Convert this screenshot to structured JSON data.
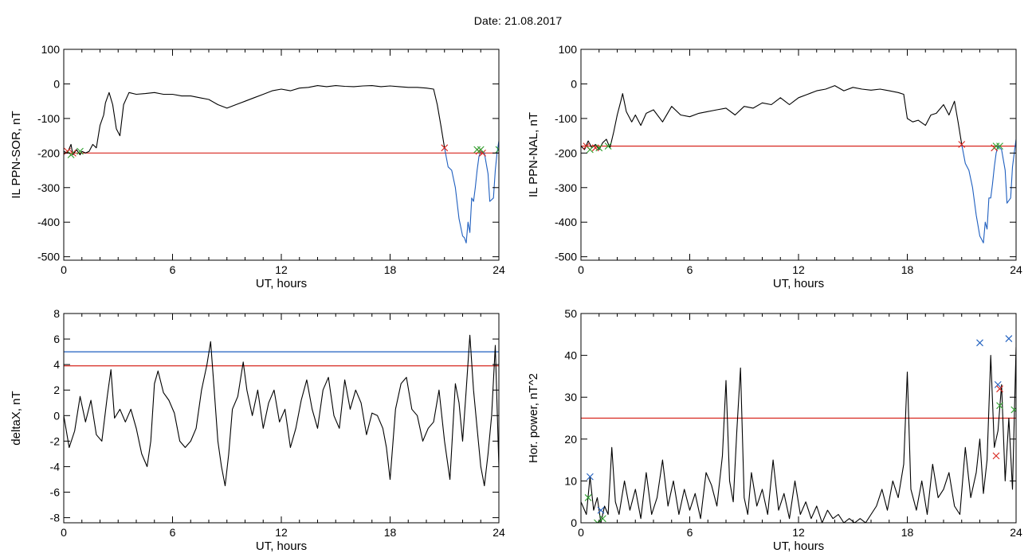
{
  "title": "Date:  21.08.2017",
  "chart_data": [
    {
      "id": "panel-sor",
      "type": "line",
      "xlabel": "UT, hours",
      "ylabel": "IL PPN-SOR, nT",
      "xlim": [
        0,
        24
      ],
      "ylim": [
        -510,
        100
      ],
      "xticks": [
        0,
        6,
        12,
        18,
        24
      ],
      "yticks": [
        100,
        0,
        -100,
        -200,
        -300,
        -400,
        -500
      ],
      "grid": false,
      "series": [
        {
          "color": "#000000",
          "x": [
            0,
            0.2,
            0.4,
            0.5,
            0.7,
            0.9,
            1.0,
            1.2,
            1.4,
            1.6,
            1.8,
            2.0,
            2.2,
            2.3,
            2.5,
            2.7,
            2.9,
            3.1,
            3.3,
            3.6,
            4.0,
            4.5,
            5.0,
            5.5,
            6.0,
            6.5,
            7.0,
            7.5,
            8.0,
            8.5,
            9.0,
            9.5,
            10.0,
            10.5,
            11.0,
            11.5,
            12.0,
            12.5,
            13.0,
            13.5,
            14.0,
            14.5,
            15.0,
            15.5,
            16.0,
            16.5,
            17.0,
            17.5,
            18.0,
            18.5,
            19.0,
            19.5,
            20.0,
            20.4,
            20.6,
            20.8,
            21.0
          ],
          "y": [
            -195,
            -200,
            -175,
            -205,
            -190,
            -205,
            -195,
            -200,
            -195,
            -175,
            -185,
            -120,
            -90,
            -55,
            -25,
            -60,
            -130,
            -150,
            -60,
            -25,
            -30,
            -28,
            -25,
            -30,
            -30,
            -35,
            -35,
            -40,
            -45,
            -60,
            -70,
            -60,
            -50,
            -40,
            -30,
            -20,
            -15,
            -20,
            -12,
            -10,
            -5,
            -8,
            -5,
            -7,
            -8,
            -6,
            -5,
            -8,
            -6,
            -8,
            -10,
            -10,
            -12,
            -15,
            -60,
            -120,
            -185
          ]
        },
        {
          "color": "#1f5fbf",
          "x": [
            21.0,
            21.2,
            21.4,
            21.6,
            21.8,
            22.0,
            22.1,
            22.2,
            22.3,
            22.4,
            22.5,
            22.6,
            22.7,
            22.8,
            22.9,
            23.0,
            23.2,
            23.4,
            23.5,
            23.7,
            23.8,
            23.9,
            24.0
          ],
          "y": [
            -185,
            -240,
            -250,
            -300,
            -390,
            -440,
            -445,
            -460,
            -400,
            -430,
            -330,
            -340,
            -300,
            -250,
            -210,
            -195,
            -200,
            -260,
            -340,
            -330,
            -250,
            -200,
            -165
          ]
        }
      ],
      "threshold_lines": [
        {
          "color": "#d7261e",
          "y": -200
        }
      ],
      "markers": [
        {
          "color": "#d7261e",
          "points": [
            [
              0.2,
              -195
            ],
            [
              0.5,
              -200
            ],
            [
              21.0,
              -185
            ],
            [
              22.9,
              -195
            ],
            [
              23.1,
              -200
            ]
          ]
        },
        {
          "color": "#2ca02c",
          "points": [
            [
              0.4,
              -205
            ],
            [
              0.9,
              -195
            ],
            [
              22.8,
              -190
            ],
            [
              23.0,
              -190
            ],
            [
              24.0,
              -190
            ]
          ]
        }
      ]
    },
    {
      "id": "panel-nal",
      "type": "line",
      "xlabel": "UT, hours",
      "ylabel": "IL PPN-NAL, nT",
      "xlim": [
        0,
        24
      ],
      "ylim": [
        -510,
        100
      ],
      "xticks": [
        0,
        6,
        12,
        18,
        24
      ],
      "yticks": [
        100,
        0,
        -100,
        -200,
        -300,
        -400,
        -500
      ],
      "grid": false,
      "series": [
        {
          "color": "#000000",
          "x": [
            0,
            0.2,
            0.4,
            0.6,
            0.8,
            1.0,
            1.2,
            1.4,
            1.6,
            1.8,
            2.0,
            2.2,
            2.3,
            2.5,
            2.8,
            3.0,
            3.3,
            3.6,
            4.0,
            4.5,
            5.0,
            5.5,
            6.0,
            6.5,
            7.0,
            7.5,
            8.0,
            8.5,
            9.0,
            9.5,
            10.0,
            10.5,
            11.0,
            11.5,
            12.0,
            12.5,
            13.0,
            13.5,
            14.0,
            14.5,
            15.0,
            15.5,
            16.0,
            16.5,
            17.0,
            17.5,
            17.8,
            18.0,
            18.3,
            18.6,
            19.0,
            19.3,
            19.6,
            20.0,
            20.3,
            20.6,
            20.8,
            21.0
          ],
          "y": [
            -180,
            -190,
            -165,
            -185,
            -175,
            -190,
            -170,
            -160,
            -185,
            -140,
            -90,
            -50,
            -28,
            -80,
            -110,
            -90,
            -120,
            -85,
            -75,
            -110,
            -65,
            -90,
            -95,
            -85,
            -80,
            -75,
            -70,
            -90,
            -65,
            -70,
            -55,
            -60,
            -40,
            -60,
            -40,
            -30,
            -20,
            -15,
            -5,
            -20,
            -10,
            -15,
            -18,
            -15,
            -20,
            -25,
            -30,
            -100,
            -110,
            -105,
            -120,
            -90,
            -85,
            -60,
            -90,
            -50,
            -110,
            -175
          ]
        },
        {
          "color": "#1f5fbf",
          "x": [
            21.0,
            21.2,
            21.4,
            21.6,
            21.8,
            22.0,
            22.1,
            22.2,
            22.3,
            22.4,
            22.5,
            22.6,
            22.7,
            22.8,
            22.9,
            23.0,
            23.2,
            23.4,
            23.5,
            23.7,
            23.8,
            23.9,
            24.0
          ],
          "y": [
            -175,
            -230,
            -250,
            -300,
            -380,
            -440,
            -450,
            -460,
            -400,
            -420,
            -330,
            -330,
            -290,
            -240,
            -200,
            -180,
            -190,
            -250,
            -345,
            -330,
            -240,
            -200,
            -160
          ]
        }
      ],
      "threshold_lines": [
        {
          "color": "#d7261e",
          "y": -180
        }
      ],
      "markers": [
        {
          "color": "#d7261e",
          "points": [
            [
              0.3,
              -180
            ],
            [
              0.8,
              -185
            ],
            [
              21.0,
              -175
            ],
            [
              22.8,
              -185
            ]
          ]
        },
        {
          "color": "#2ca02c",
          "points": [
            [
              0.5,
              -190
            ],
            [
              1.0,
              -185
            ],
            [
              1.5,
              -180
            ],
            [
              22.9,
              -180
            ],
            [
              23.1,
              -180
            ]
          ]
        }
      ]
    },
    {
      "id": "panel-deltax",
      "type": "line",
      "xlabel": "UT, hours",
      "ylabel": "deltaX, nT",
      "xlim": [
        0,
        24
      ],
      "ylim": [
        -8.4,
        8
      ],
      "xticks": [
        0,
        6,
        12,
        18,
        24
      ],
      "yticks": [
        8,
        6,
        4,
        2,
        0,
        -2,
        -4,
        -6,
        -8
      ],
      "grid": false,
      "series": [
        {
          "color": "#000000",
          "x": [
            0,
            0.3,
            0.6,
            0.9,
            1.2,
            1.5,
            1.8,
            2.1,
            2.4,
            2.6,
            2.8,
            3.1,
            3.4,
            3.7,
            4.0,
            4.3,
            4.6,
            4.8,
            5.0,
            5.2,
            5.5,
            5.8,
            6.1,
            6.4,
            6.7,
            7.0,
            7.3,
            7.6,
            7.9,
            8.1,
            8.3,
            8.5,
            8.7,
            8.9,
            9.1,
            9.3,
            9.6,
            9.9,
            10.1,
            10.4,
            10.7,
            11.0,
            11.3,
            11.6,
            11.9,
            12.2,
            12.5,
            12.8,
            13.1,
            13.4,
            13.7,
            14.0,
            14.3,
            14.6,
            14.9,
            15.2,
            15.5,
            15.8,
            16.1,
            16.4,
            16.7,
            17.0,
            17.3,
            17.6,
            17.8,
            18.0,
            18.3,
            18.6,
            18.9,
            19.2,
            19.5,
            19.8,
            20.1,
            20.4,
            20.7,
            21.0,
            21.3,
            21.6,
            21.8,
            22.0,
            22.2,
            22.4,
            22.6,
            22.8,
            23.0,
            23.2,
            23.4,
            23.6,
            23.8,
            24.0
          ],
          "y": [
            0,
            -2.5,
            -1.2,
            1.5,
            -0.5,
            1.2,
            -1.5,
            -2,
            1.5,
            3.6,
            -0.2,
            0.5,
            -0.5,
            0.5,
            -1,
            -3,
            -4,
            -2,
            2.5,
            3.5,
            1.8,
            1.2,
            0.2,
            -2,
            -2.5,
            -2,
            -1,
            2,
            4,
            5.8,
            2,
            -2,
            -4,
            -5.5,
            -3,
            0.5,
            1.5,
            4.2,
            2,
            0,
            2,
            -1,
            1,
            2,
            -0.5,
            0.5,
            -2.5,
            -1,
            1.2,
            2.8,
            0.5,
            -1,
            2,
            3,
            0,
            -1,
            2.8,
            0.5,
            2,
            1,
            -1.5,
            0.2,
            0,
            -1,
            -2.5,
            -5,
            0.5,
            2.5,
            3,
            0.5,
            0,
            -2,
            -1,
            -0.5,
            2,
            -2,
            -5,
            2.5,
            1,
            -2,
            2,
            6.3,
            2,
            -1,
            -4,
            -5.5,
            -3,
            0,
            5.5,
            -4
          ]
        }
      ],
      "threshold_lines": [
        {
          "color": "#1f5fbf",
          "y": 5
        },
        {
          "color": "#d7261e",
          "y": 3.9
        }
      ],
      "markers": []
    },
    {
      "id": "panel-power",
      "type": "line",
      "xlabel": "UT, hours",
      "ylabel": "Hor. power, nT^2",
      "xlim": [
        0,
        24
      ],
      "ylim": [
        0,
        50
      ],
      "xticks": [
        0,
        6,
        12,
        18,
        24
      ],
      "yticks": [
        50,
        40,
        30,
        20,
        10,
        0
      ],
      "grid": false,
      "series": [
        {
          "color": "#000000",
          "x": [
            0,
            0.3,
            0.5,
            0.7,
            0.9,
            1.1,
            1.3,
            1.5,
            1.7,
            1.9,
            2.1,
            2.4,
            2.7,
            3.0,
            3.3,
            3.6,
            3.9,
            4.2,
            4.5,
            4.8,
            5.1,
            5.4,
            5.7,
            6.0,
            6.3,
            6.6,
            6.9,
            7.2,
            7.5,
            7.8,
            8.0,
            8.2,
            8.4,
            8.6,
            8.8,
            9.0,
            9.2,
            9.4,
            9.7,
            10.0,
            10.3,
            10.6,
            10.9,
            11.2,
            11.5,
            11.8,
            12.1,
            12.4,
            12.7,
            13.0,
            13.3,
            13.6,
            13.9,
            14.2,
            14.5,
            14.8,
            15.1,
            15.4,
            15.7,
            16.0,
            16.3,
            16.6,
            16.9,
            17.2,
            17.5,
            17.8,
            18.0,
            18.2,
            18.5,
            18.8,
            19.1,
            19.4,
            19.7,
            20.0,
            20.3,
            20.6,
            20.9,
            21.2,
            21.5,
            21.8,
            22.0,
            22.2,
            22.4,
            22.6,
            22.8,
            23.0,
            23.2,
            23.4,
            23.6,
            23.8,
            24.0
          ],
          "y": [
            5,
            2,
            11,
            3,
            6,
            0,
            4,
            2,
            18,
            5,
            2,
            10,
            3,
            8,
            1,
            12,
            2,
            6,
            15,
            4,
            10,
            2,
            8,
            3,
            7,
            1,
            12,
            9,
            4,
            16,
            34,
            10,
            5,
            22,
            37,
            6,
            2,
            12,
            4,
            8,
            2,
            15,
            3,
            7,
            1,
            10,
            2,
            5,
            1,
            4,
            0,
            3,
            1,
            2,
            0,
            1,
            0,
            1,
            0,
            2,
            4,
            8,
            3,
            10,
            6,
            14,
            36,
            8,
            3,
            10,
            2,
            14,
            6,
            8,
            12,
            4,
            2,
            18,
            6,
            12,
            20,
            7,
            15,
            40,
            18,
            22,
            33,
            10,
            25,
            8,
            42
          ]
        }
      ],
      "threshold_lines": [
        {
          "color": "#d7261e",
          "y": 25
        }
      ],
      "markers": [
        {
          "color": "#1f5fbf",
          "points": [
            [
              0.5,
              11
            ],
            [
              1.1,
              3
            ],
            [
              22.0,
              43
            ],
            [
              23.0,
              33
            ],
            [
              23.6,
              44
            ]
          ]
        },
        {
          "color": "#d7261e",
          "points": [
            [
              22.9,
              16
            ],
            [
              23.1,
              32
            ]
          ]
        },
        {
          "color": "#2ca02c",
          "points": [
            [
              0.4,
              6
            ],
            [
              0.9,
              0
            ],
            [
              1.2,
              1
            ],
            [
              23.1,
              28
            ],
            [
              23.9,
              27
            ]
          ]
        }
      ]
    }
  ]
}
